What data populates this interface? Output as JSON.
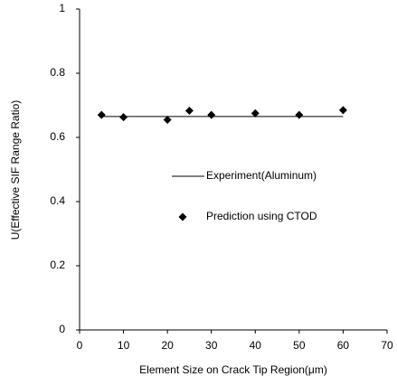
{
  "chart_data": {
    "type": "scatter",
    "xlabel": "Element Size on Crack Tip Region(μm)",
    "ylabel": "U(Effective SIF Range Ratio)",
    "xlim": [
      0,
      70
    ],
    "xticks": [
      0,
      10,
      20,
      30,
      40,
      50,
      60,
      70
    ],
    "ylim": [
      0,
      1
    ],
    "yticks": [
      0,
      {
        "value": 0.2,
        "label": "0.2"
      },
      {
        "value": 0.4,
        "label": "0.4"
      },
      {
        "value": 0.6,
        "label": "0.6"
      },
      {
        "value": 0.8,
        "label": "0.8"
      },
      1
    ],
    "series": [
      {
        "name": "Experiment(Aluminum)",
        "style": "line",
        "color": "#000000",
        "x": [
          5,
          60
        ],
        "values": [
          0.665,
          0.665
        ]
      },
      {
        "name": "Prediction using CTOD",
        "style": "marker",
        "color": "#000000",
        "x": [
          5,
          10,
          20,
          25,
          30,
          40,
          50,
          60
        ],
        "values": [
          0.67,
          0.663,
          0.655,
          0.683,
          0.67,
          0.675,
          0.67,
          0.685
        ]
      }
    ]
  }
}
